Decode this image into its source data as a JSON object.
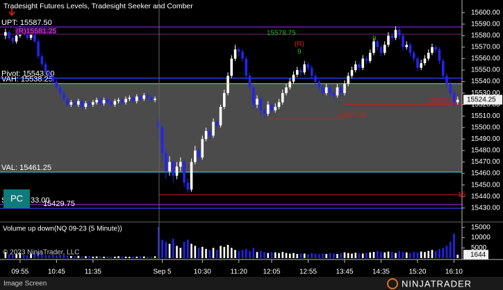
{
  "chart_data": {
    "type": "candlestick",
    "title": "Tradesight Futures Levels, Tradesight Seeker and Comber",
    "up_color": "#ffffff",
    "down_color": "#2424f0",
    "xlim": [
      -1.5,
      125.2
    ],
    "xticks": [
      {
        "value": 4,
        "label": "09:55"
      },
      {
        "value": 14,
        "label": "10:45"
      },
      {
        "value": 24,
        "label": "11:35"
      },
      {
        "value": 43,
        "label": "Sep 5"
      },
      {
        "value": 54,
        "label": "10:30"
      },
      {
        "value": 64,
        "label": "11:20"
      },
      {
        "value": 73,
        "label": "12:05"
      },
      {
        "value": 83,
        "label": "12:55"
      },
      {
        "value": 93,
        "label": "13:45"
      },
      {
        "value": 103,
        "label": "14:35"
      },
      {
        "value": 113,
        "label": "15:20"
      },
      {
        "value": 123,
        "label": "16:10"
      }
    ],
    "ylim": [
      15419,
      15611
    ],
    "yticks": [
      {
        "value": 15600,
        "label": "15600.00"
      },
      {
        "value": 15590,
        "label": "15590.00"
      },
      {
        "value": 15580,
        "label": "15580.00"
      },
      {
        "value": 15570,
        "label": "15570.00"
      },
      {
        "value": 15560,
        "label": "15560.00"
      },
      {
        "value": 15550,
        "label": "15550.00"
      },
      {
        "value": 15540,
        "label": "15540.00"
      },
      {
        "value": 15530,
        "label": "15530.00"
      },
      {
        "value": 15520,
        "label": "15520.00"
      },
      {
        "value": 15510,
        "label": "15510.00"
      },
      {
        "value": 15500,
        "label": "15500.00"
      },
      {
        "value": 15490,
        "label": "15490.00"
      },
      {
        "value": 15480,
        "label": "15480.00"
      },
      {
        "value": 15470,
        "label": "15470.00"
      },
      {
        "value": 15460,
        "label": "15460.00"
      },
      {
        "value": 15450,
        "label": "15450.00"
      },
      {
        "value": 15440,
        "label": "15440.00"
      },
      {
        "value": 15430,
        "label": "15430.00"
      }
    ],
    "candles": [
      [
        15580,
        15586,
        15577,
        15583
      ],
      [
        15583,
        15585,
        15576,
        15578
      ],
      [
        15578,
        15580,
        15573,
        15575
      ],
      [
        15575,
        15582,
        15573,
        15580
      ],
      [
        15580,
        15588,
        15578,
        15585
      ],
      [
        15585,
        15587,
        15580,
        15582
      ],
      [
        15582,
        15584,
        15576,
        15578
      ],
      [
        15578,
        15586,
        15576,
        15584
      ],
      [
        15584,
        15586,
        15573,
        15575
      ],
      [
        15575,
        15577,
        15560,
        15562
      ],
      [
        15562,
        15564,
        15553,
        15555
      ],
      [
        15555,
        15557,
        15546,
        15548
      ],
      [
        15548,
        15550,
        15543,
        15545
      ],
      [
        15545,
        15547,
        15538,
        15540
      ],
      [
        15540,
        15542,
        15533,
        15535
      ],
      [
        15535,
        15537,
        15528,
        15530
      ],
      [
        15530,
        15532,
        15523,
        15525
      ],
      [
        15525,
        15527,
        15518,
        15520
      ],
      [
        15520,
        15524,
        15518,
        15522
      ],
      [
        15522,
        15524,
        15518,
        15520
      ],
      [
        15520,
        15525,
        15518,
        15523
      ],
      [
        15523,
        15525,
        15516,
        15518
      ],
      [
        15518,
        15523,
        15516,
        15521
      ],
      [
        15521,
        15523,
        15518,
        15520
      ],
      [
        15520,
        15524,
        15518,
        15522
      ],
      [
        15522,
        15526,
        15520,
        15524
      ],
      [
        15524,
        15526,
        15519,
        15521
      ],
      [
        15521,
        15526,
        15519,
        15524
      ],
      [
        15524,
        15526,
        15520,
        15522
      ],
      [
        15522,
        15524,
        15518,
        15520
      ],
      [
        15520,
        15525,
        15518,
        15523
      ],
      [
        15523,
        15526,
        15521,
        15524
      ],
      [
        15524,
        15526,
        15520,
        15522
      ],
      [
        15522,
        15527,
        15520,
        15525
      ],
      [
        15525,
        15528,
        15523,
        15526
      ],
      [
        15526,
        15528,
        15521,
        15523
      ],
      [
        15523,
        15529,
        15521,
        15527
      ],
      [
        15527,
        15529,
        15523,
        15525
      ],
      [
        15525,
        15530,
        15523,
        15528
      ],
      [
        15528,
        15530,
        15524,
        15526
      ],
      [
        15526,
        15528,
        15522,
        15524
      ],
      [
        15524,
        15527,
        15522,
        15525
      ],
      [
        15505,
        15510,
        15490,
        15500
      ],
      [
        15500,
        15502,
        15470,
        15478
      ],
      [
        15478,
        15482,
        15455,
        15462
      ],
      [
        15462,
        15475,
        15458,
        15470
      ],
      [
        15470,
        15472,
        15452,
        15458
      ],
      [
        15458,
        15470,
        15455,
        15466
      ],
      [
        15466,
        15474,
        15462,
        15470
      ],
      [
        15470,
        15472,
        15448,
        15452
      ],
      [
        15452,
        15456,
        15443,
        15446
      ],
      [
        15446,
        15473,
        15444,
        15470
      ],
      [
        15470,
        15484,
        15468,
        15480
      ],
      [
        15480,
        15482,
        15470,
        15474
      ],
      [
        15474,
        15493,
        15472,
        15490
      ],
      [
        15490,
        15500,
        15488,
        15497
      ],
      [
        15497,
        15499,
        15490,
        15493
      ],
      [
        15493,
        15508,
        15491,
        15505
      ],
      [
        15505,
        15507,
        15499,
        15502
      ],
      [
        15502,
        15520,
        15500,
        15518
      ],
      [
        15518,
        15533,
        15516,
        15530
      ],
      [
        15530,
        15548,
        15528,
        15545
      ],
      [
        15545,
        15563,
        15543,
        15560
      ],
      [
        15560,
        15572,
        15558,
        15568
      ],
      [
        15568,
        15570,
        15562,
        15566
      ],
      [
        15566,
        15568,
        15557,
        15560
      ],
      [
        15560,
        15562,
        15542,
        15545
      ],
      [
        15545,
        15547,
        15532,
        15535
      ],
      [
        15535,
        15537,
        15516,
        15520
      ],
      [
        15520,
        15528,
        15517,
        15525
      ],
      [
        15525,
        15527,
        15510,
        15515
      ],
      [
        15515,
        15517,
        15508,
        15512
      ],
      [
        15512,
        15523,
        15510,
        15520
      ],
      [
        15520,
        15522,
        15512,
        15515
      ],
      [
        15515,
        15521,
        15513,
        15518
      ],
      [
        15518,
        15525,
        15516,
        15522
      ],
      [
        15522,
        15533,
        15520,
        15530
      ],
      [
        15530,
        15538,
        15528,
        15535
      ],
      [
        15535,
        15543,
        15533,
        15540
      ],
      [
        15540,
        15549,
        15538,
        15546
      ],
      [
        15546,
        15553,
        15544,
        15550
      ],
      [
        15550,
        15552,
        15545,
        15548
      ],
      [
        15548,
        15558,
        15546,
        15555
      ],
      [
        15555,
        15557,
        15549,
        15552
      ],
      [
        15552,
        15554,
        15542,
        15545
      ],
      [
        15545,
        15547,
        15537,
        15540
      ],
      [
        15540,
        15542,
        15532,
        15535
      ],
      [
        15535,
        15537,
        15527,
        15530
      ],
      [
        15530,
        15538,
        15528,
        15535
      ],
      [
        15535,
        15537,
        15527,
        15530
      ],
      [
        15530,
        15532,
        15525,
        15528
      ],
      [
        15528,
        15538,
        15526,
        15535
      ],
      [
        15535,
        15537,
        15527,
        15530
      ],
      [
        15530,
        15541,
        15528,
        15538
      ],
      [
        15538,
        15548,
        15536,
        15545
      ],
      [
        15545,
        15553,
        15543,
        15550
      ],
      [
        15550,
        15558,
        15548,
        15555
      ],
      [
        15555,
        15557,
        15549,
        15552
      ],
      [
        15552,
        15563,
        15550,
        15560
      ],
      [
        15560,
        15562,
        15555,
        15558
      ],
      [
        15558,
        15568,
        15556,
        15565
      ],
      [
        15565,
        15578,
        15563,
        15575
      ],
      [
        15575,
        15577,
        15567,
        15570
      ],
      [
        15570,
        15572,
        15562,
        15565
      ],
      [
        15565,
        15575,
        15563,
        15572
      ],
      [
        15572,
        15583,
        15570,
        15580
      ],
      [
        15580,
        15582,
        15575,
        15578
      ],
      [
        15578,
        15588,
        15576,
        15585
      ],
      [
        15585,
        15587,
        15577,
        15580
      ],
      [
        15580,
        15582,
        15567,
        15570
      ],
      [
        15570,
        15575,
        15568,
        15572
      ],
      [
        15572,
        15574,
        15562,
        15565
      ],
      [
        15565,
        15567,
        15557,
        15560
      ],
      [
        15560,
        15562,
        15549,
        15552
      ],
      [
        15552,
        15559,
        15550,
        15556
      ],
      [
        15556,
        15563,
        15554,
        15560
      ],
      [
        15560,
        15568,
        15558,
        15565
      ],
      [
        15565,
        15573,
        15563,
        15570
      ],
      [
        15570,
        15572,
        15565,
        15568
      ],
      [
        15568,
        15570,
        15555,
        15558
      ],
      [
        15558,
        15560,
        15542,
        15545
      ],
      [
        15545,
        15547,
        15535,
        15538
      ],
      [
        15538,
        15540,
        15527,
        15530
      ],
      [
        15530,
        15532,
        15519,
        15522
      ],
      [
        15522,
        15527,
        15520,
        15524.25
      ]
    ],
    "last_price_label": "15524.25",
    "value_area": {
      "high": 15538.25,
      "low": 15461.25,
      "color": "rgba(150,150,150,0.5)"
    },
    "levels": [
      {
        "value": 15587.5,
        "label": "UPT: 15587.50",
        "color": "#8a2be2"
      },
      {
        "value": 15581.25,
        "color": "#5e1e5e"
      },
      {
        "value": 15543,
        "label": "Pivot: 15543.00",
        "color": "#3048ff"
      },
      {
        "value": 15538.25,
        "label": "VAH: 15538.25",
        "color": "#3cc0cc"
      },
      {
        "value": 15461.25,
        "label": "VAL: 15461.25",
        "color": "#3cc0cc"
      },
      {
        "value": 15433,
        "color": "#8a2be2"
      },
      {
        "value": 15429.75,
        "label": "15429.75",
        "color": "#3048ff"
      }
    ],
    "segments": [
      {
        "value": 15507.25,
        "label": "15507.25",
        "from": 72,
        "to": 93,
        "color": "#c81e1e"
      },
      {
        "value": 15520.25,
        "label": "15520.25",
        "from": 93,
        "to": 125.2,
        "color": "#c81e1e"
      },
      {
        "value": 15441.5,
        "from": 42,
        "to": 125.2,
        "color": "#c81e1e"
      }
    ],
    "annotations": {
      "r_level": "(R)15581.25",
      "seeker_price": "15578.75",
      "r_mark": "(R)",
      "edge": "15",
      "s_left": "S",
      "s_right": "33.00",
      "counts": [
        "9",
        "9"
      ]
    },
    "volume": {
      "title": "Volume up down(NQ 09-23 (5 Minute))",
      "copyright": "© 2023 NinjaTrader, LLC",
      "ylim": [
        0,
        17000
      ],
      "yticks": [
        15000,
        10000,
        5000
      ],
      "values": [
        3000,
        1800,
        1500,
        2000,
        2500,
        1600,
        1400,
        2200,
        2400,
        2800,
        2000,
        1500,
        1400,
        1700,
        1300,
        1600,
        1500,
        1200,
        1000,
        900,
        1100,
        800,
        900,
        1000,
        700,
        800,
        900,
        700,
        800,
        600,
        700,
        900,
        800,
        700,
        600,
        800,
        700,
        900,
        800,
        700,
        600,
        900,
        15300,
        9000,
        8000,
        7000,
        9500,
        6000,
        5000,
        8000,
        9000,
        7000,
        6000,
        5000,
        5500,
        4500,
        4000,
        5000,
        4000,
        6000,
        5500,
        6500,
        5000,
        4000,
        3500,
        4000,
        4500,
        3500,
        5000,
        3000,
        3500,
        3000,
        2500,
        3000,
        2800,
        2500,
        3000,
        2500,
        2200,
        2500,
        2000,
        2300,
        2200,
        2000,
        2500,
        2200,
        2000,
        2300,
        2000,
        2500,
        2200,
        2000,
        2400,
        2800,
        2500,
        2200,
        2600,
        2400,
        2200,
        2600,
        2800,
        3000,
        3500,
        3000,
        2800,
        3200,
        3000,
        2500,
        3500,
        3000,
        2800,
        2500,
        3000,
        2800,
        3200,
        3000,
        3500,
        4000,
        3500,
        4500,
        5000,
        6000,
        8000,
        12000,
        1644
      ]
    },
    "button": "PC",
    "footer": "Image Screen",
    "brand": "NINJATRADER"
  }
}
